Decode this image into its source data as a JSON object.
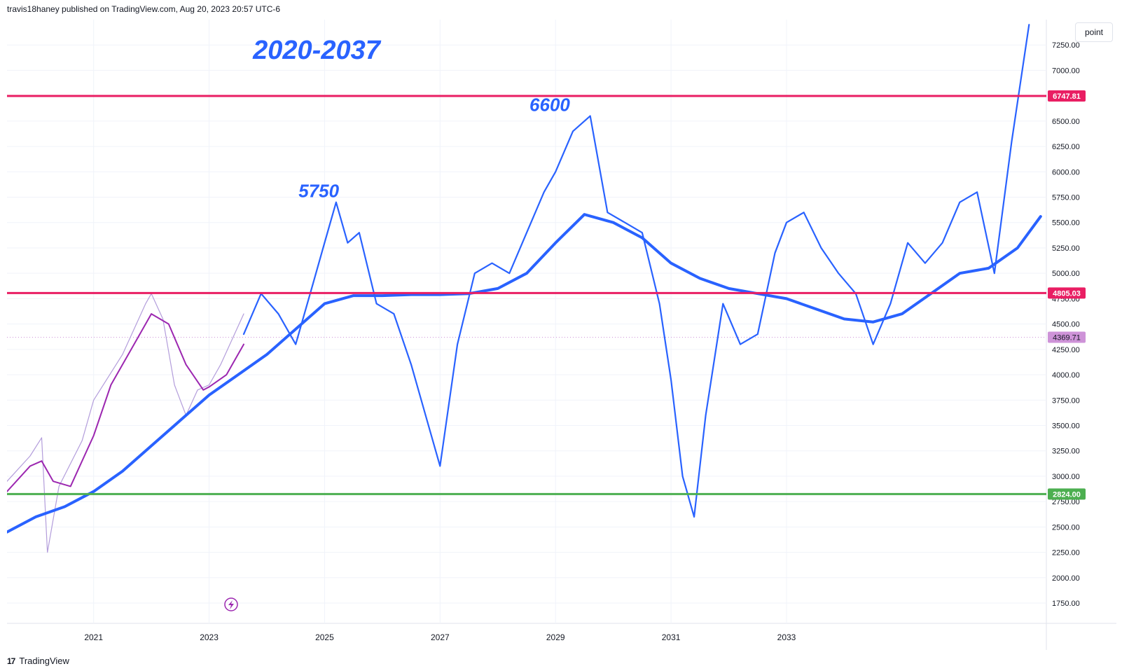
{
  "header": {
    "publisher": "travis18haney published on TradingView.com, Aug 20, 2023 20:57 UTC-6"
  },
  "footer": {
    "brand": "TradingView"
  },
  "controls": {
    "scale_label": "point"
  },
  "chart_data": {
    "type": "line",
    "title": "2020-2037",
    "xlabel": "",
    "ylabel": "",
    "x_ticks": [
      "2021",
      "2023",
      "2025",
      "2027",
      "2029",
      "2031",
      "2033"
    ],
    "y_ticks": [
      1750,
      2000,
      2250,
      2500,
      2750,
      3000,
      3250,
      3500,
      3750,
      4000,
      4250,
      4500,
      4750,
      5000,
      5250,
      5500,
      5750,
      6000,
      6250,
      6500,
      7000,
      7250
    ],
    "ylim": [
      1550,
      7500
    ],
    "xlim": [
      2019.5,
      2037.5
    ],
    "grid": true,
    "legend": "none",
    "colors": {
      "projection": "#2962ff",
      "historical": "#b39ddb",
      "historical_ma": "#9c27b0",
      "resistance": "#e91e63",
      "support": "#4caf50",
      "current": "#ce93d8",
      "annotation": "#2962ff"
    },
    "horizontal_levels": [
      {
        "label": "6747.81",
        "value": 6747.81,
        "color": "#e91e63"
      },
      {
        "label": "4805.03",
        "value": 4805.03,
        "color": "#e91e63"
      },
      {
        "label": "2824.00",
        "value": 2824.0,
        "color": "#4caf50"
      }
    ],
    "current_price": {
      "label": "4369.71",
      "value": 4369.71
    },
    "annotations": [
      {
        "text": "5750",
        "x": 2024.9,
        "y": 5750
      },
      {
        "text": "6600",
        "x": 2028.9,
        "y": 6600
      }
    ],
    "series": [
      {
        "values_x": [
          2019.5,
          2019.9,
          2020.1,
          2020.2,
          2020.4,
          2020.8,
          2021.0,
          2021.5,
          2021.9,
          2022.0,
          2022.2,
          2022.4,
          2022.6,
          2022.8,
          2023.0,
          2023.2,
          2023.4,
          2023.6
        ],
        "values": [
          2950,
          3200,
          3380,
          2250,
          2900,
          3350,
          3750,
          4200,
          4700,
          4800,
          4550,
          3900,
          3600,
          3850,
          3900,
          4100,
          4350,
          4600
        ]
      },
      {
        "values_x": [
          2019.5,
          2019.9,
          2020.1,
          2020.3,
          2020.6,
          2021.0,
          2021.3,
          2021.7,
          2022.0,
          2022.3,
          2022.6,
          2022.9,
          2023.0,
          2023.3,
          2023.6
        ],
        "values": [
          2850,
          3100,
          3150,
          2950,
          2900,
          3400,
          3900,
          4300,
          4600,
          4500,
          4100,
          3850,
          3880,
          4000,
          4300
        ]
      },
      {
        "values_x": [
          2023.6,
          2023.9,
          2024.2,
          2024.5,
          2024.8,
          2025.0,
          2025.2,
          2025.4,
          2025.6,
          2025.9,
          2026.2,
          2026.5,
          2026.8,
          2027.0,
          2027.3,
          2027.6,
          2027.9,
          2028.2,
          2028.5,
          2028.8,
          2029.0,
          2029.3,
          2029.6,
          2029.9,
          2030.2,
          2030.5,
          2030.8,
          2031.0,
          2031.2,
          2031.4,
          2031.6,
          2031.9,
          2032.2,
          2032.5,
          2032.8,
          2033.0,
          2033.3,
          2033.6,
          2033.9,
          2034.2,
          2034.5,
          2034.8,
          2035.1,
          2035.4,
          2035.7,
          2036.0,
          2036.3,
          2036.6,
          2036.9,
          2037.2
        ],
        "values": [
          4400,
          4800,
          4600,
          4300,
          4900,
          5300,
          5700,
          5300,
          5400,
          4700,
          4600,
          4100,
          3500,
          3100,
          4300,
          5000,
          5100,
          5000,
          5400,
          5800,
          6000,
          6400,
          6550,
          5600,
          5500,
          5400,
          4700,
          3950,
          3000,
          2600,
          3600,
          4700,
          4300,
          4400,
          5200,
          5500,
          5600,
          5250,
          5000,
          4800,
          4300,
          4700,
          5300,
          5100,
          5300,
          5700,
          5800,
          5000,
          6300,
          7450
        ]
      },
      {
        "values_x": [
          2019.5,
          2020.0,
          2020.5,
          2021.0,
          2021.5,
          2022.0,
          2022.5,
          2023.0,
          2023.5,
          2024.0,
          2024.5,
          2025.0,
          2025.5,
          2026.0,
          2026.5,
          2027.0,
          2027.5,
          2028.0,
          2028.5,
          2029.0,
          2029.5,
          2030.0,
          2030.5,
          2031.0,
          2031.5,
          2032.0,
          2032.5,
          2033.0,
          2033.5,
          2034.0,
          2034.5,
          2035.0,
          2035.5,
          2036.0,
          2036.5,
          2037.0,
          2037.4
        ],
        "values": [
          2450,
          2600,
          2700,
          2850,
          3050,
          3300,
          3550,
          3800,
          4000,
          4200,
          4450,
          4700,
          4780,
          4780,
          4790,
          4790,
          4800,
          4850,
          5000,
          5300,
          5580,
          5500,
          5350,
          5100,
          4950,
          4850,
          4800,
          4750,
          4650,
          4550,
          4520,
          4600,
          4800,
          5000,
          5050,
          5250,
          5560
        ]
      }
    ]
  }
}
